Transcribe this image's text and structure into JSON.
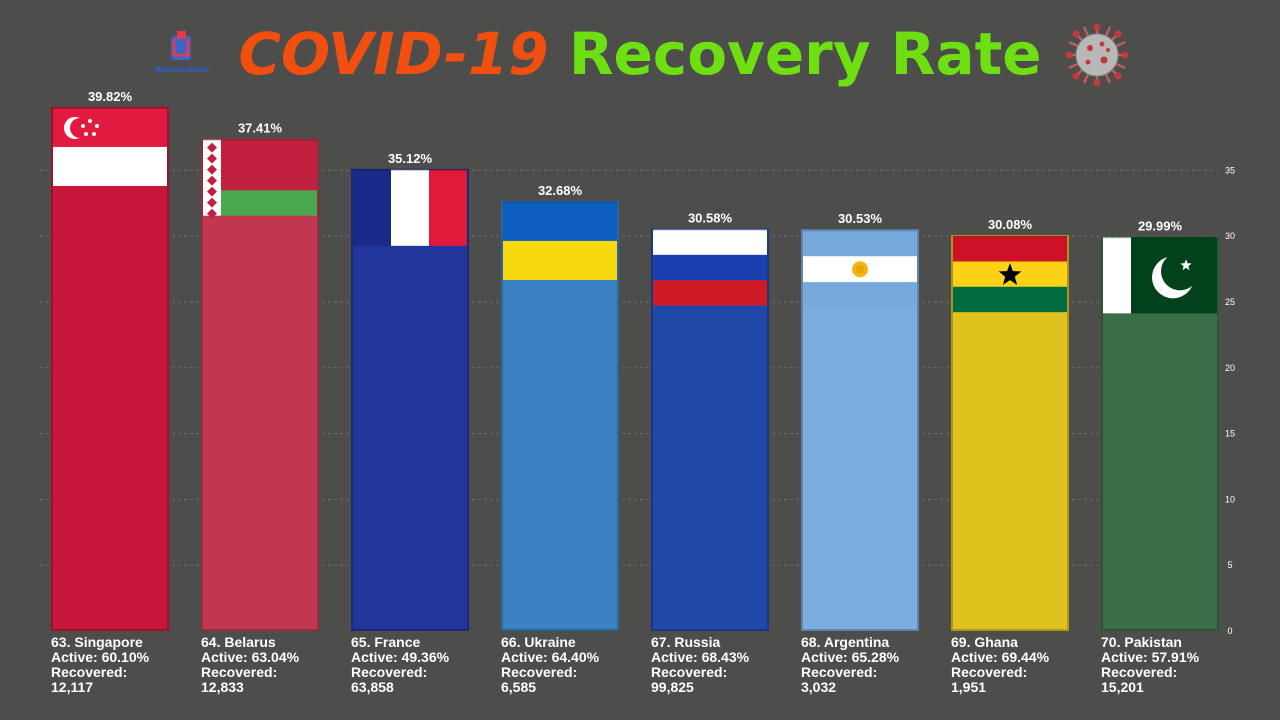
{
  "title": {
    "part1": "COVID-19",
    "part2": "Recovery Rate"
  },
  "brand": "WawamuStats",
  "icons": {
    "logo": "wawamustats-logo",
    "virus": "coronavirus-icon"
  },
  "chart_data": {
    "type": "bar",
    "title": "COVID-19 Recovery Rate",
    "ylim": [
      0,
      35
    ],
    "yticks": [
      0,
      5,
      10,
      15,
      20,
      25,
      30,
      35
    ],
    "grid": true,
    "categories": [
      "Singapore",
      "Belarus",
      "France",
      "Ukraine",
      "Russia",
      "Argentina",
      "Ghana",
      "Pakistan"
    ],
    "ranks": [
      63,
      64,
      65,
      66,
      67,
      68,
      69,
      70
    ],
    "values": [
      39.82,
      37.41,
      35.12,
      32.68,
      30.58,
      30.53,
      30.08,
      29.99
    ],
    "value_labels": [
      "39.82%",
      "37.41%",
      "35.12%",
      "32.68%",
      "30.58%",
      "30.53%",
      "30.08%",
      "29.99%"
    ],
    "bar_labels": [
      [
        "63. Singapore",
        "Active: 60.10%",
        "Recovered:",
        "12,117"
      ],
      [
        "64. Belarus",
        "Active: 63.04%",
        "Recovered:",
        "12,833"
      ],
      [
        "65. France",
        "Active: 49.36%",
        "Recovered:",
        "63,858"
      ],
      [
        "66. Ukraine",
        "Active: 64.40%",
        "Recovered:",
        "6,585"
      ],
      [
        "67. Russia",
        "Active: 68.43%",
        "Recovered:",
        "99,825"
      ],
      [
        "68. Argentina",
        "Active: 65.28%",
        "Recovered:",
        "3,032"
      ],
      [
        "69. Ghana",
        "Active: 69.44%",
        "Recovered:",
        "1,951"
      ],
      [
        "70. Pakistan",
        "Active: 57.91%",
        "Recovered:",
        "15,201"
      ]
    ],
    "active_pct": [
      60.1,
      63.04,
      49.36,
      64.4,
      68.43,
      65.28,
      69.44,
      57.91
    ],
    "recovered": [
      12117,
      12833,
      63858,
      6585,
      99825,
      3032,
      1951,
      15201
    ],
    "colors": {
      "Singapore": "#c8163a",
      "Belarus": "#c23750",
      "France": "#22359a",
      "Ukraine": "#3b82c4",
      "Russia": "#1f48a8",
      "Argentina": "#79aede",
      "Ghana": "#dfc21e",
      "Pakistan": "#3b6e46"
    },
    "flags": [
      "singapore-flag",
      "belarus-flag",
      "france-flag",
      "ukraine-flag",
      "russia-flag",
      "argentina-flag",
      "ghana-flag",
      "pakistan-flag"
    ]
  }
}
